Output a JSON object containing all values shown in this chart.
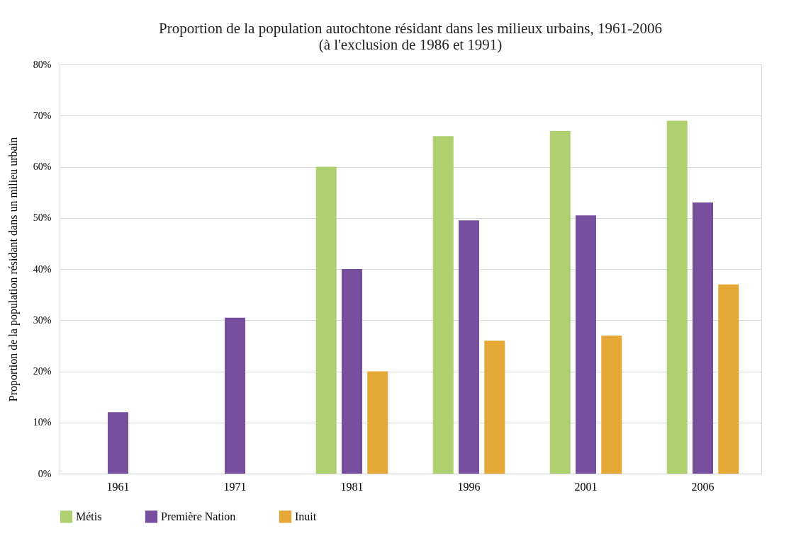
{
  "chart_data": {
    "type": "bar",
    "title": "Proportion de la population autochtone résidant dans les milieux urbains, 1961-2006\n(à l'exclusion de 1986 et 1991)",
    "ylabel": "Proportion de la population résidant dans un milieu urbain",
    "categories": [
      "1961",
      "1971",
      "1981",
      "1996",
      "2001",
      "2006"
    ],
    "series": [
      {
        "name": "Métis",
        "color": "#aed06e",
        "values": [
          null,
          null,
          60,
          66,
          67,
          69
        ]
      },
      {
        "name": "Première Nation",
        "color": "#774f9e",
        "values": [
          12,
          30.5,
          40,
          49.5,
          50.5,
          53
        ]
      },
      {
        "name": "Inuit",
        "color": "#e5a736",
        "values": [
          null,
          null,
          20,
          26,
          27,
          37
        ]
      }
    ],
    "ylim": [
      0,
      80
    ],
    "yticks": [
      {
        "value": 0,
        "label": "0%"
      },
      {
        "value": 10,
        "label": "10%"
      },
      {
        "value": 20,
        "label": "20%"
      },
      {
        "value": 30,
        "label": "30%"
      },
      {
        "value": 40,
        "label": "40%"
      },
      {
        "value": 50,
        "label": "50%"
      },
      {
        "value": 60,
        "label": "60%"
      },
      {
        "value": 70,
        "label": "70%"
      },
      {
        "value": 80,
        "label": "80%"
      }
    ],
    "grid": "y",
    "legend": "bottom"
  }
}
